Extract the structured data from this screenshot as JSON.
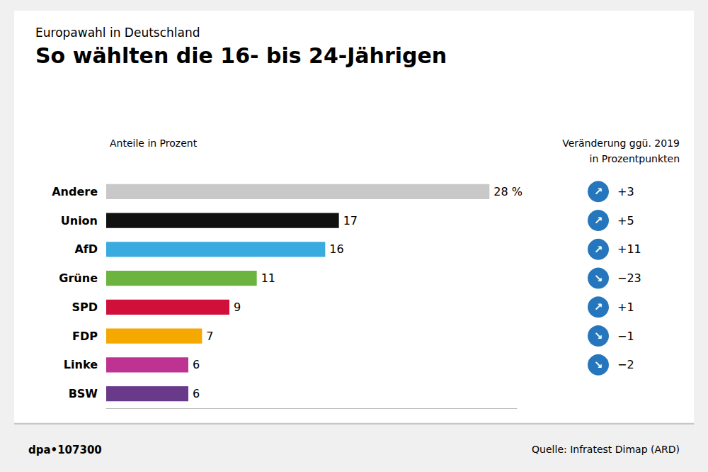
{
  "chart_data": {
    "type": "bar",
    "orientation": "horizontal",
    "supertitle": "Europawahl in Deutschland",
    "title": "So wählten die 16- bis 24-Jährigen",
    "subtitle": "Anteile in Prozent",
    "categories": [
      "Andere",
      "Union",
      "AfD",
      "Grüne",
      "SPD",
      "FDP",
      "Linke",
      "BSW"
    ],
    "values": [
      28,
      17,
      16,
      11,
      9,
      7,
      6,
      6
    ],
    "colors": [
      "#c8c8c8",
      "#111111",
      "#3aabde",
      "#6cb33f",
      "#d0103a",
      "#f5a800",
      "#be3291",
      "#6a3a8a"
    ],
    "value_labels": [
      "28 %",
      "17",
      "16",
      "11",
      "9",
      "7",
      "6",
      "6"
    ],
    "data_labels": true,
    "xlim": [
      0,
      30
    ],
    "tick_labels": "y",
    "grid": false,
    "changes": {
      "title": [
        "Veränderung ggü. 2019",
        "in Prozentpunkten"
      ],
      "values": [
        3,
        5,
        11,
        -23,
        1,
        -1,
        -2,
        null
      ],
      "value_labels": [
        "+3",
        "+5",
        "+11",
        "−23",
        "+1",
        "−1",
        "−2",
        null
      ],
      "arrows": [
        "↗",
        "↗",
        "↗",
        "↘",
        "↗",
        "↘",
        "↘",
        null
      ],
      "color": "#2576bc"
    },
    "source": "Quelle: Infratest Dimap (ARD)",
    "credit": "dpa•107300"
  }
}
